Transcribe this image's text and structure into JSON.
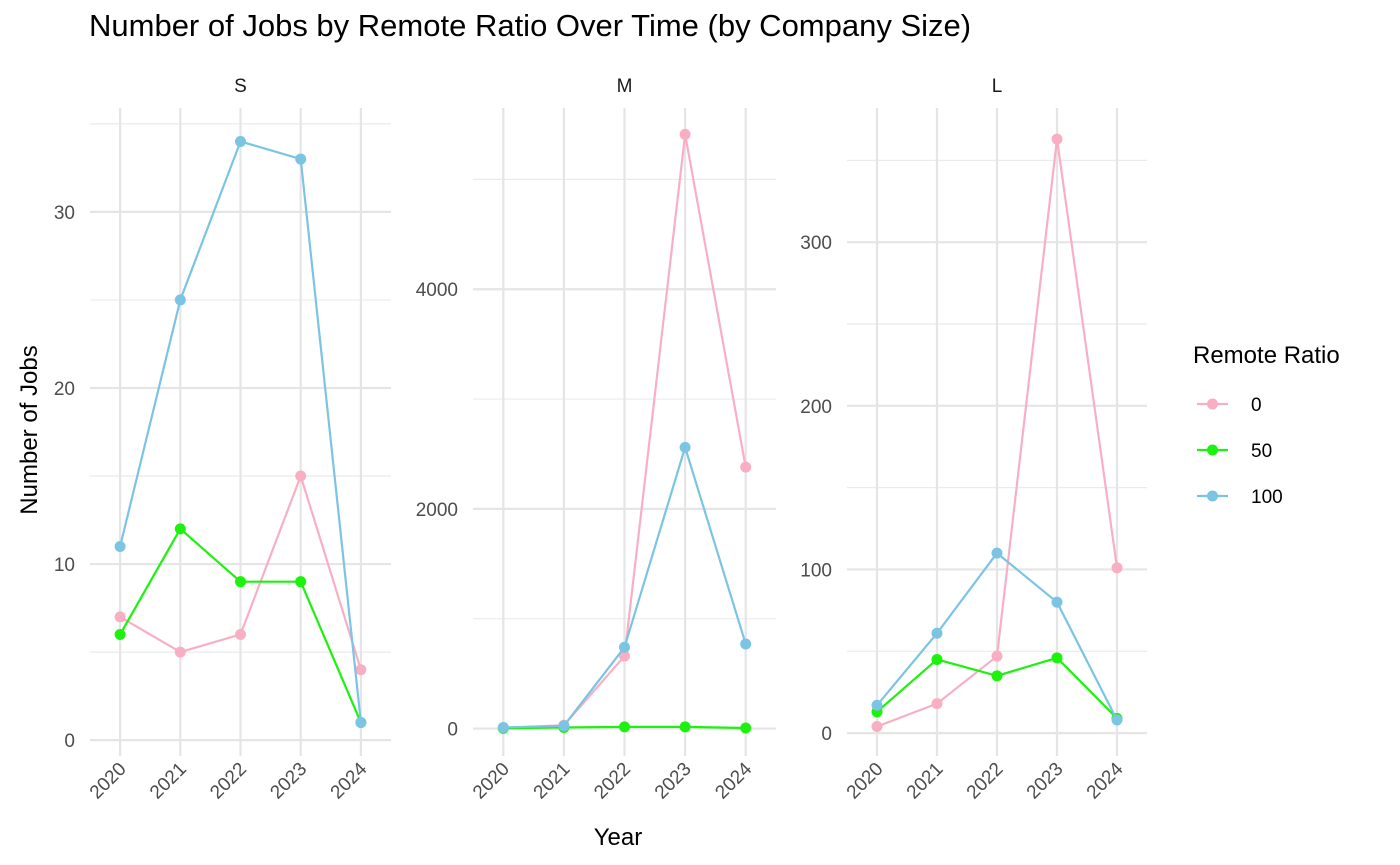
{
  "chart_data": {
    "type": "line",
    "title": "Number of Jobs by Remote Ratio Over Time (by Company Size)",
    "xlabel": "Year",
    "ylabel": "Number of Jobs",
    "legend": {
      "title": "Remote Ratio",
      "placement": "right",
      "entries": [
        "0",
        "50",
        "100"
      ]
    },
    "grid": true,
    "x": [
      "2020",
      "2021",
      "2022",
      "2023",
      "2024"
    ],
    "facets": [
      {
        "label": "S",
        "ylim": [
          -0.9,
          35.9
        ],
        "yticks": [
          0,
          10,
          20,
          30
        ],
        "series": [
          {
            "name": "0",
            "color": "#F8AFC4",
            "values": [
              7,
              5,
              6,
              15,
              4
            ]
          },
          {
            "name": "50",
            "color": "#1CF20D",
            "values": [
              6,
              12,
              9,
              9,
              1
            ]
          },
          {
            "name": "100",
            "color": "#7CC4E3",
            "values": [
              11,
              25,
              34,
              33,
              1
            ]
          }
        ]
      },
      {
        "label": "M",
        "ylim": [
          -250,
          5650
        ],
        "yticks": [
          0,
          2000,
          4000
        ],
        "series": [
          {
            "name": "0",
            "color": "#F8AFC4",
            "values": [
              5,
              30,
              660,
              5410,
              2380
            ]
          },
          {
            "name": "50",
            "color": "#1CF20D",
            "values": [
              2,
              10,
              15,
              15,
              5
            ]
          },
          {
            "name": "100",
            "color": "#7CC4E3",
            "values": [
              10,
              25,
              740,
              2560,
              770
            ]
          }
        ]
      },
      {
        "label": "L",
        "ylim": [
          -14,
          382
        ],
        "yticks": [
          0,
          100,
          200,
          300
        ],
        "series": [
          {
            "name": "0",
            "color": "#F8AFC4",
            "values": [
              4,
              18,
              47,
              363,
              101
            ]
          },
          {
            "name": "50",
            "color": "#1CF20D",
            "values": [
              13,
              45,
              35,
              46,
              9
            ]
          },
          {
            "name": "100",
            "color": "#7CC4E3",
            "values": [
              17,
              61,
              110,
              80,
              8
            ]
          }
        ]
      }
    ]
  }
}
